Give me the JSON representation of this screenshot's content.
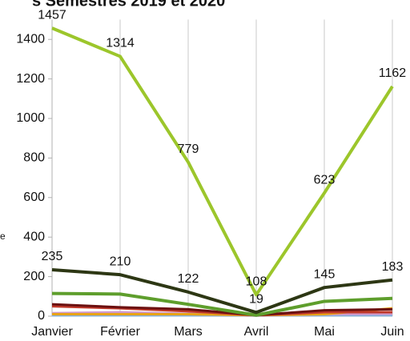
{
  "chart_data": {
    "type": "line",
    "title": "s Semestres 2019 et 2020",
    "ylabel": "e",
    "categories": [
      "Janvier",
      "Février",
      "Mars",
      "Avril",
      "Mai",
      "Juin"
    ],
    "ylim": [
      0,
      1500
    ],
    "yticks": [
      0,
      200,
      400,
      600,
      800,
      1000,
      1200,
      1400
    ],
    "grid": true,
    "series": [
      {
        "color": "#9cc62b",
        "values": [
          1457,
          1314,
          779,
          108,
          623,
          1162
        ],
        "show_labels": true
      },
      {
        "color": "#2d3714",
        "values": [
          235,
          210,
          122,
          19,
          145,
          183
        ],
        "show_labels": true
      },
      {
        "color": "#5e9e2c",
        "values": [
          115,
          112,
          60,
          5,
          75,
          90
        ]
      },
      {
        "color": "#6b1010",
        "values": [
          60,
          45,
          35,
          5,
          30,
          35
        ]
      },
      {
        "color": "#c0392b",
        "values": [
          50,
          40,
          25,
          5,
          20,
          20
        ]
      },
      {
        "color": "#e8a317",
        "values": [
          10,
          10,
          10,
          5,
          10,
          40
        ]
      },
      {
        "color": "#d09acb",
        "values": [
          15,
          20,
          12,
          3,
          10,
          12
        ]
      },
      {
        "color": "#7fb0e0",
        "values": [
          5,
          5,
          5,
          3,
          5,
          5
        ]
      }
    ]
  }
}
